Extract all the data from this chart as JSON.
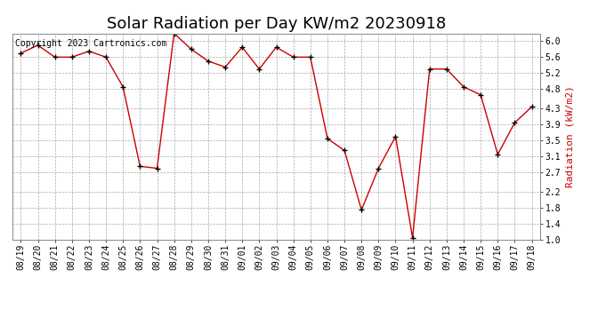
{
  "title": "Solar Radiation per Day KW/m2 20230918",
  "ylabel": "Radiation (kW/m2)",
  "copyright_text": "Copyright 2023 Cartronics.com",
  "dates": [
    "08/19",
    "08/20",
    "08/21",
    "08/22",
    "08/23",
    "08/24",
    "08/25",
    "08/26",
    "08/27",
    "08/28",
    "08/29",
    "08/30",
    "08/31",
    "09/01",
    "09/02",
    "09/03",
    "09/04",
    "09/05",
    "09/06",
    "09/07",
    "09/08",
    "09/09",
    "09/10",
    "09/11",
    "09/12",
    "09/13",
    "09/14",
    "09/15",
    "09/16",
    "09/17",
    "09/18"
  ],
  "values": [
    5.7,
    5.9,
    5.6,
    5.6,
    5.75,
    5.6,
    4.85,
    2.85,
    2.8,
    6.2,
    5.8,
    5.5,
    5.35,
    5.85,
    5.3,
    5.85,
    5.6,
    5.6,
    3.55,
    3.25,
    1.75,
    2.8,
    3.6,
    1.05,
    5.3,
    5.3,
    4.85,
    4.65,
    3.15,
    3.95,
    4.35
  ],
  "line_color": "#cc0000",
  "marker_color": "#000000",
  "ylabel_color": "#cc0000",
  "background_color": "#ffffff",
  "grid_color": "#aaaaaa",
  "ylim_min": 1.0,
  "ylim_max": 6.2,
  "yticks": [
    1.0,
    1.4,
    1.8,
    2.2,
    2.7,
    3.1,
    3.5,
    3.9,
    4.3,
    4.8,
    5.2,
    5.6,
    6.0
  ],
  "title_fontsize": 13,
  "ylabel_fontsize": 8,
  "tick_fontsize": 7,
  "copyright_fontsize": 7
}
